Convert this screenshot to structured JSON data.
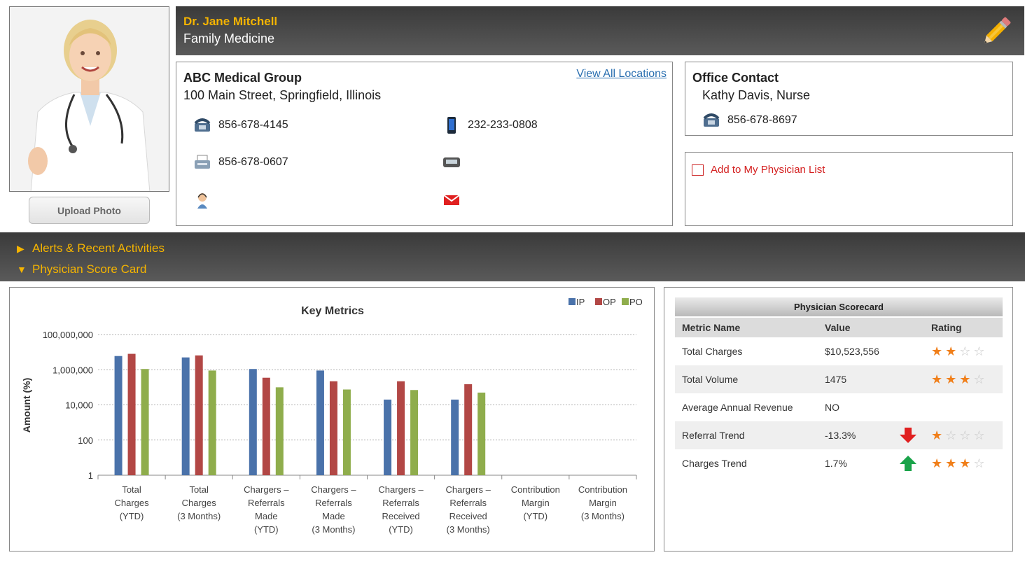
{
  "profile": {
    "upload_label": "Upload Photo",
    "name": "Dr. Jane Mitchell",
    "specialty": "Family Medicine"
  },
  "location": {
    "group": "ABC Medical Group",
    "address": "100 Main Street, Springfield, Illinois",
    "view_all": "View All Locations",
    "phone": "856-678-4145",
    "mobile": "232-233-0808",
    "fax": "856-678-0607",
    "pager": "",
    "assistant": "",
    "email": ""
  },
  "office": {
    "title": "Office Contact",
    "name": "Kathy Davis, Nurse",
    "phone": "856-678-8697"
  },
  "add_list": {
    "label": "Add to My Physician List"
  },
  "sections": {
    "alerts": "Alerts & Recent Activities",
    "scorecard": "Physician Score Card"
  },
  "chart_data": {
    "type": "bar",
    "title": "Key Metrics",
    "ylabel": "Amount (%)",
    "xlabel": "",
    "yscale": "log",
    "ylim": [
      1,
      100000000
    ],
    "yticks": [
      1,
      100,
      10000,
      1000000,
      100000000
    ],
    "ytick_labels": [
      "1",
      "100",
      "10,000",
      "1,000,000",
      "100,000,000"
    ],
    "grid": true,
    "legend_position": "top-right",
    "categories": [
      [
        "Total",
        "Charges",
        "(YTD)"
      ],
      [
        "Total",
        "Charges",
        "(3 Months)"
      ],
      [
        "Chargers –",
        "Referrals",
        "Made",
        "(YTD)"
      ],
      [
        "Chargers –",
        "Referrals",
        "Made",
        "(3 Months)"
      ],
      [
        "Chargers –",
        "Referrals",
        "Received",
        "(YTD)"
      ],
      [
        "Chargers –",
        "Referrals",
        "Received",
        "(3 Months)"
      ],
      [
        "Contribution",
        "Margin",
        "(YTD)"
      ],
      [
        "Contribution",
        "Margin",
        "(3 Months)"
      ]
    ],
    "series": [
      {
        "name": "IP",
        "color": "#4a72aa",
        "values": [
          6000000,
          5000000,
          1100000,
          900000,
          20000,
          20000,
          null,
          null
        ]
      },
      {
        "name": "OP",
        "color": "#b24745",
        "values": [
          8000000,
          6500000,
          350000,
          220000,
          220000,
          150000,
          null,
          null
        ]
      },
      {
        "name": "PO",
        "color": "#8fad4c",
        "values": [
          1100000,
          900000,
          100000,
          75000,
          70000,
          50000,
          null,
          null
        ]
      }
    ]
  },
  "scorecard": {
    "title": "Physician Scorecard",
    "headers": {
      "name": "Metric Name",
      "value": "Value",
      "rating": "Rating"
    },
    "rows": [
      {
        "name": "Total Charges",
        "value": "$10,523,556",
        "trend": "",
        "rating": 2
      },
      {
        "name": "Total Volume",
        "value": "1475",
        "trend": "",
        "rating": 3
      },
      {
        "name": "Average Annual Revenue",
        "value": "NO",
        "trend": "",
        "rating": 0
      },
      {
        "name": "Referral Trend",
        "value": "-13.3%",
        "trend": "down",
        "rating": 1
      },
      {
        "name": "Charges Trend",
        "value": "1.7%",
        "trend": "up",
        "rating": 3
      }
    ],
    "max_rating": 4,
    "colors": {
      "star_on": "#f07f1a",
      "arrow_down": "#e02020",
      "arrow_up": "#1aa34a"
    }
  }
}
